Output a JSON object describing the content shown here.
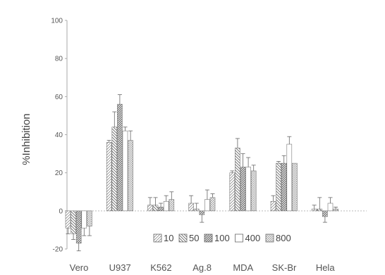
{
  "chart_data": {
    "type": "bar",
    "title": "",
    "xlabel": "",
    "ylabel": "%Inhibition",
    "ylim": [
      -20,
      100
    ],
    "yticks": [
      -20,
      0,
      20,
      40,
      60,
      80,
      100
    ],
    "categories": [
      "Vero",
      "U937",
      "K562",
      "Ag.8",
      "MDA",
      "SK-Br",
      "Hela"
    ],
    "legend_position": "bottom-center",
    "grid": false,
    "series": [
      {
        "name": "10",
        "values": [
          -9,
          36,
          3,
          4,
          20,
          5,
          1
        ],
        "errors": [
          3,
          1,
          4,
          4,
          1,
          3,
          2
        ]
      },
      {
        "name": "50",
        "values": [
          -12,
          44,
          3,
          1,
          33,
          25,
          1
        ],
        "errors": [
          3,
          8,
          4,
          3,
          5,
          1,
          6
        ]
      },
      {
        "name": "100",
        "values": [
          -17,
          56,
          2,
          -2,
          23,
          25,
          -3
        ],
        "errors": [
          4,
          5,
          2,
          4,
          7,
          4,
          3
        ]
      },
      {
        "name": "400",
        "values": [
          -9,
          42,
          5,
          6,
          23,
          35,
          4
        ],
        "errors": [
          4,
          2,
          3,
          5,
          5,
          4,
          3
        ]
      },
      {
        "name": "800",
        "values": [
          -8,
          37,
          6,
          7,
          21,
          25,
          1
        ],
        "errors": [
          5,
          5,
          4,
          2,
          3,
          0,
          1
        ]
      }
    ]
  }
}
